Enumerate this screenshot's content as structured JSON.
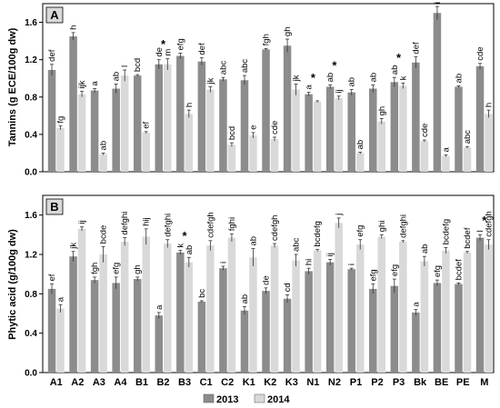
{
  "chart_data": [
    {
      "type": "bar",
      "panel_label": "A",
      "ylabel": "Tannins (g ECE/100g dw)",
      "ylim": [
        0,
        1.8
      ],
      "yticks": [
        "0.0",
        "0.4",
        "0.8",
        "1.2",
        "1.6"
      ],
      "categories": [
        "A1",
        "A2",
        "A3",
        "A4",
        "B1",
        "B2",
        "B3",
        "C1",
        "C2",
        "K1",
        "K2",
        "K3",
        "N1",
        "N2",
        "P1",
        "P2",
        "P3",
        "Bk",
        "BE",
        "PE",
        "M"
      ],
      "series": [
        {
          "name": "2013",
          "values": [
            1.09,
            1.45,
            0.87,
            0.89,
            1.03,
            1.15,
            1.24,
            1.18,
            0.99,
            0.98,
            1.31,
            1.35,
            0.83,
            0.91,
            0.85,
            0.89,
            0.96,
            1.17,
            1.7,
            0.91,
            1.13
          ],
          "errors": [
            0.06,
            0.04,
            0.02,
            0.05,
            0.01,
            0.05,
            0.03,
            0.04,
            0.02,
            0.05,
            0.01,
            0.07,
            0.02,
            0.02,
            0.03,
            0.04,
            0.05,
            0.06,
            0.07,
            0.01,
            0.03
          ],
          "letters": [
            "def",
            "h",
            "a",
            "ab",
            "bcd",
            "de",
            "efg",
            "def",
            "abc",
            "abc",
            "fgh",
            "gh",
            "a",
            "ab",
            "ab",
            "ab",
            "ab",
            "def",
            "i",
            "ab",
            "cde"
          ]
        },
        {
          "name": "2014",
          "values": [
            0.47,
            0.83,
            0.19,
            1.03,
            0.42,
            1.15,
            0.62,
            0.88,
            0.29,
            0.39,
            0.35,
            0.88,
            0.75,
            0.79,
            0.2,
            0.54,
            0.92,
            0.33,
            0.17,
            0.26,
            0.62
          ],
          "errors": [
            0.02,
            0.03,
            0.01,
            0.06,
            0.01,
            0.06,
            0.04,
            0.03,
            0.02,
            0.03,
            0.02,
            0.06,
            0.01,
            0.02,
            0.01,
            0.03,
            0.03,
            0.01,
            0.01,
            0.01,
            0.04
          ],
          "letters": [
            "fg",
            "ijk",
            "ab",
            "l",
            "ef",
            "m",
            "h",
            "jk",
            "bcd",
            "e",
            "cde",
            "jk",
            "",
            "ij",
            "ab",
            "gh",
            "k",
            "cde",
            "a",
            "abc",
            "h"
          ]
        }
      ],
      "significance_markers": [
        "",
        "",
        "",
        "",
        "",
        "*",
        "",
        "",
        "",
        "",
        "",
        "",
        "*",
        "*",
        "",
        "",
        "*",
        "",
        "",
        "",
        ""
      ]
    },
    {
      "type": "bar",
      "panel_label": "B",
      "ylabel": "Phytic acid (g/100g dw)",
      "ylim": [
        0,
        1.8
      ],
      "yticks": [
        "0.0",
        "0.4",
        "0.8",
        "1.2",
        "1.6"
      ],
      "categories": [
        "A1",
        "A2",
        "A3",
        "A4",
        "B1",
        "B2",
        "B3",
        "C1",
        "C2",
        "K1",
        "K2",
        "K3",
        "N1",
        "N2",
        "P1",
        "P2",
        "P3",
        "Bk",
        "BE",
        "PE",
        "M"
      ],
      "series": [
        {
          "name": "2013",
          "values": [
            0.85,
            1.18,
            0.94,
            0.91,
            0.95,
            0.58,
            1.22,
            0.72,
            1.06,
            0.63,
            0.83,
            0.75,
            1.03,
            1.12,
            1.05,
            0.85,
            0.88,
            0.61,
            0.91,
            0.9,
            1.37
          ],
          "errors": [
            0.05,
            0.05,
            0.03,
            0.06,
            0.02,
            0.03,
            0.02,
            0.01,
            0.02,
            0.04,
            0.03,
            0.04,
            0.03,
            0.03,
            0.01,
            0.05,
            0.07,
            0.03,
            0.03,
            0.01,
            0.03
          ],
          "letters": [
            "ef",
            "jk",
            "fgh",
            "efg",
            "gh",
            "a",
            "k",
            "bc",
            "i",
            "ab",
            "de",
            "cd",
            "hi",
            "ij",
            "i",
            "efg",
            "efg",
            "a",
            "efg",
            "bcdef",
            "l"
          ]
        },
        {
          "name": "2014",
          "values": [
            0.65,
            1.46,
            1.2,
            1.33,
            1.38,
            1.31,
            1.12,
            1.29,
            1.37,
            1.17,
            1.29,
            1.14,
            1.24,
            1.52,
            1.3,
            1.38,
            1.33,
            1.13,
            1.24,
            1.22,
            1.3
          ],
          "errors": [
            0.04,
            0.02,
            0.08,
            0.04,
            0.08,
            0.04,
            0.05,
            0.05,
            0.04,
            0.09,
            0.02,
            0.06,
            0.01,
            0.05,
            0.05,
            0.02,
            0.01,
            0.05,
            0.03,
            0.01,
            0.05
          ],
          "letters": [
            "a",
            "ij",
            "bcde",
            "defghi",
            "hij",
            "defghi",
            "ab",
            "cdefgh",
            "fghi",
            "ab",
            "cdefgh",
            "abc",
            "bcdefg",
            "j",
            "efg",
            "ghi",
            "defghi",
            "ab",
            "bcdefg",
            "bcdef",
            "cdefgh"
          ]
        }
      ],
      "significance_markers": [
        "",
        "",
        "",
        "",
        "",
        "",
        "*",
        "",
        "",
        "",
        "",
        "",
        "",
        "",
        "",
        "",
        "",
        "",
        "",
        "",
        "*"
      ]
    }
  ],
  "legend": {
    "items": [
      {
        "label": "2013",
        "color": "#8c8c8c"
      },
      {
        "label": "2014",
        "color": "#d9d9d9"
      }
    ]
  },
  "colors": {
    "series_2013": "#8c8c8c",
    "series_2014": "#d9d9d9",
    "panel_label_bg": "#d9d9d9"
  }
}
